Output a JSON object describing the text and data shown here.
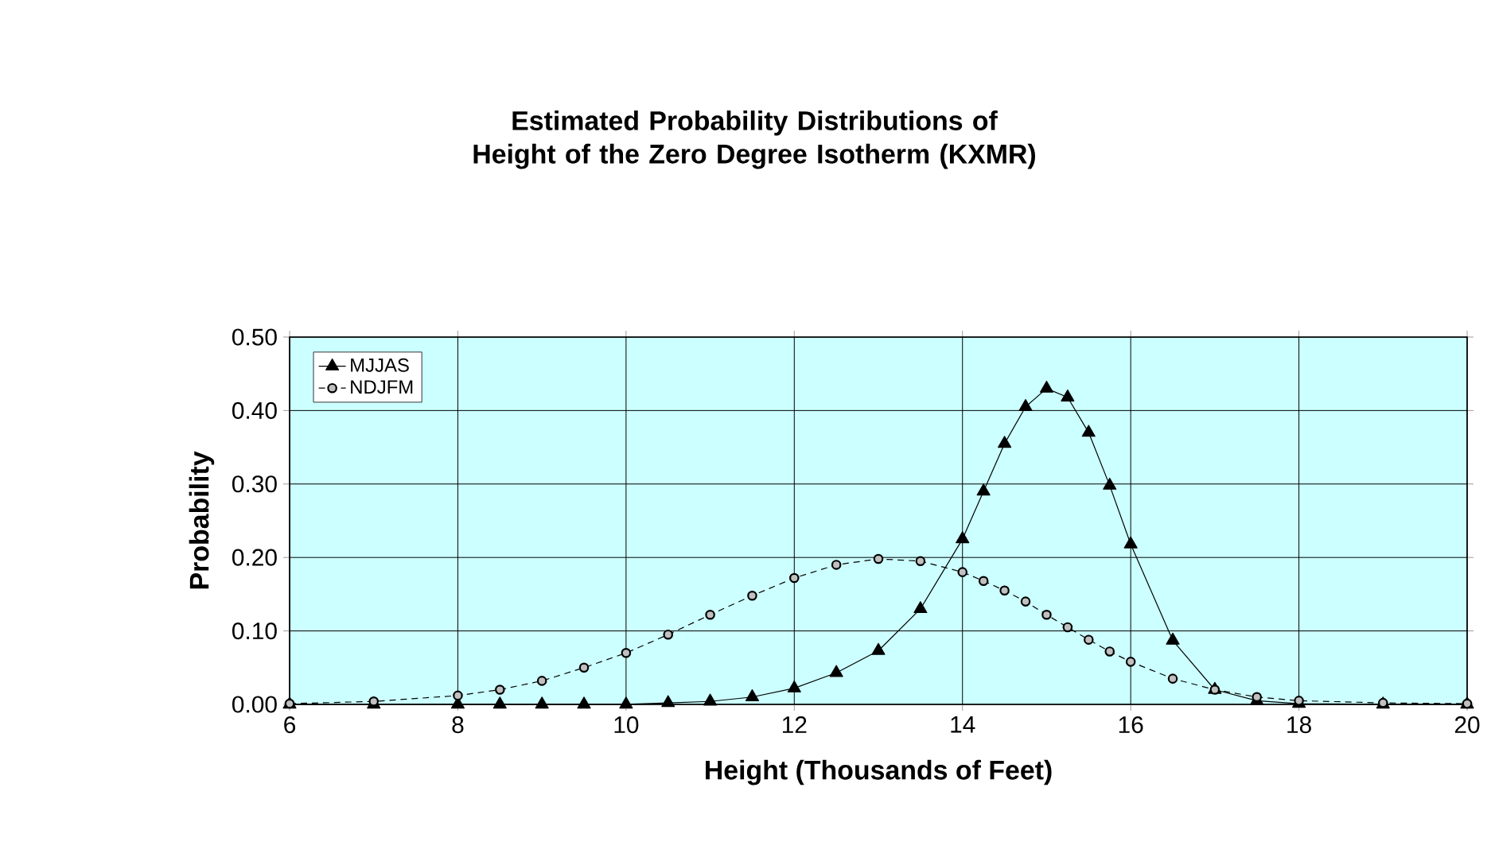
{
  "chart_data": {
    "type": "line",
    "title": "Estimated Probability Distributions of Height of the Zero Degree Isotherm (KXMR)",
    "xlabel": "Height (Thousands of Feet)",
    "ylabel": "Probability",
    "x": [
      6,
      7,
      8,
      8.5,
      9,
      9.5,
      10,
      10.5,
      11,
      11.5,
      12,
      12.5,
      13,
      13.5,
      14,
      14.25,
      14.5,
      14.75,
      15,
      15.25,
      15.5,
      15.75,
      16,
      16.5,
      17,
      17.5,
      18,
      19,
      20
    ],
    "series": [
      {
        "name": "MJJAS",
        "color": "#000000",
        "marker": "triangle",
        "line_style": "solid",
        "values": [
          0,
          0,
          0,
          0,
          0,
          0,
          0,
          0.002,
          0.004,
          0.01,
          0.022,
          0.043,
          0.073,
          0.13,
          0.225,
          0.29,
          0.355,
          0.405,
          0.43,
          0.418,
          0.37,
          0.298,
          0.218,
          0.087,
          0.02,
          0.005,
          0.001,
          0,
          0
        ]
      },
      {
        "name": "NDJFM",
        "color": "#c0c0c0",
        "marker": "circle",
        "line_style": "dashed",
        "values": [
          0.001,
          0.004,
          0.012,
          0.02,
          0.032,
          0.05,
          0.07,
          0.095,
          0.122,
          0.148,
          0.172,
          0.19,
          0.198,
          0.195,
          0.18,
          0.168,
          0.155,
          0.14,
          0.122,
          0.105,
          0.088,
          0.072,
          0.058,
          0.035,
          0.02,
          0.01,
          0.005,
          0.002,
          0.001
        ]
      }
    ],
    "xlim": [
      6,
      20
    ],
    "xticks": [
      6,
      8,
      10,
      12,
      14,
      16,
      18,
      20
    ],
    "ylim": [
      0,
      0.5
    ],
    "yticks": [
      {
        "value": 0,
        "label": "0.00"
      },
      {
        "value": 0.1,
        "label": "0.10"
      },
      {
        "value": 0.2,
        "label": "0.20"
      },
      {
        "value": 0.3,
        "label": "0.30"
      },
      {
        "value": 0.4,
        "label": "0.40"
      },
      {
        "value": 0.5,
        "label": "0.50"
      }
    ],
    "grid": true,
    "legend": "top left"
  }
}
